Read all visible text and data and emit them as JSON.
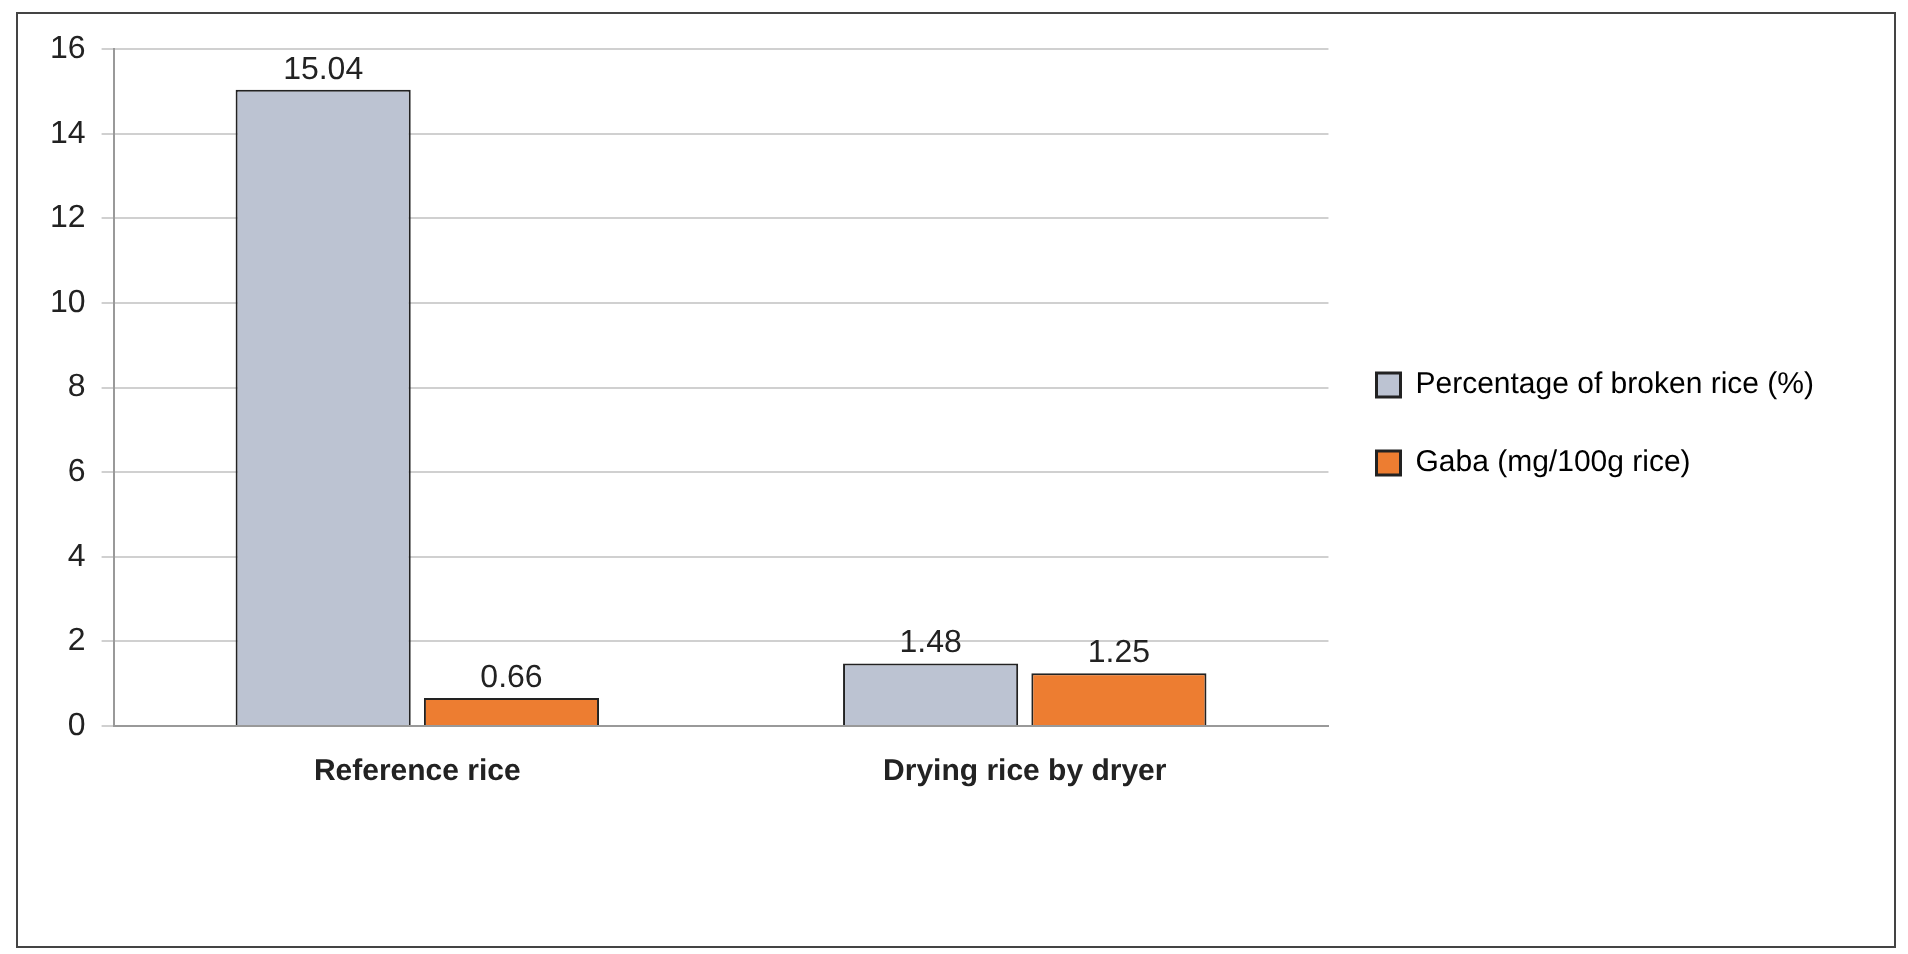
{
  "chart_data": {
    "type": "bar",
    "categories": [
      "Reference rice",
      "Drying rice by dryer"
    ],
    "series": [
      {
        "name": "Percentage of broken rice (%)",
        "color": "#bcc3d2",
        "values": [
          15.04,
          1.48
        ]
      },
      {
        "name": "Gaba (mg/100g rice)",
        "color": "#ed7d31",
        "values": [
          0.66,
          1.25
        ]
      }
    ],
    "ylim": [
      0,
      16
    ],
    "yticks": [
      0,
      2,
      4,
      6,
      8,
      10,
      12,
      14,
      16
    ],
    "grid": "y",
    "legend": "right",
    "data_labels": true
  }
}
